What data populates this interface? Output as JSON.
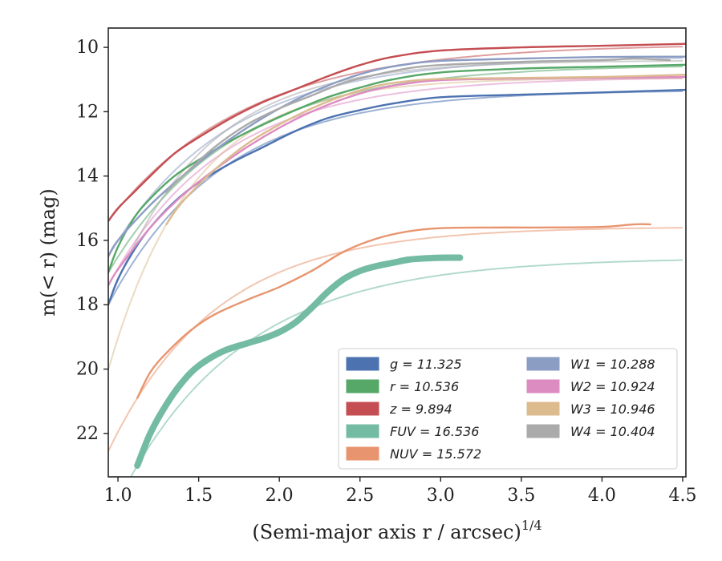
{
  "chart_data": {
    "type": "line",
    "title": "",
    "xlabel": "(Semi-major axis r / arcsec)",
    "xlabel_exponent": "1/4",
    "ylabel": "m(< r) (mag)",
    "xlim": [
      0.94,
      4.52
    ],
    "ylim": [
      23.35,
      9.4
    ],
    "y_inverted": true,
    "xticks": [
      "1.0",
      "1.5",
      "2.0",
      "2.5",
      "3.0",
      "3.5",
      "4.0",
      "4.5"
    ],
    "xtick_values": [
      1.0,
      1.5,
      2.0,
      2.5,
      3.0,
      3.5,
      4.0,
      4.5
    ],
    "yticks": [
      "10",
      "12",
      "14",
      "16",
      "18",
      "20",
      "22"
    ],
    "ytick_values": [
      10,
      12,
      14,
      16,
      18,
      20,
      22
    ],
    "grid": false,
    "legend_position": "bottom-right",
    "colors": {
      "g": "#4c72b0",
      "r": "#55a868",
      "z": "#c44e52",
      "FUV": "#73bba3",
      "NUV": "#e8956f",
      "W1": "#8c9dc4",
      "W2": "#dd8cc2",
      "W3": "#dcbb8f",
      "W4": "#aaaaaa"
    },
    "series": [
      {
        "key": "g",
        "legend": "g = 11.325",
        "asymptote": 11.325,
        "x": [
          0.94,
          1.0,
          1.1,
          1.2,
          1.35,
          1.5,
          1.7,
          1.9,
          2.1,
          2.3,
          2.5,
          2.7,
          3.0,
          3.5,
          4.0,
          4.52
        ],
        "y": [
          18.0,
          17.2,
          16.3,
          15.6,
          14.8,
          14.2,
          13.6,
          13.1,
          12.6,
          12.2,
          11.95,
          11.75,
          11.55,
          11.47,
          11.4,
          11.32
        ]
      },
      {
        "key": "r",
        "legend": "r = 10.536",
        "asymptote": 10.536,
        "x": [
          0.94,
          1.0,
          1.1,
          1.2,
          1.35,
          1.5,
          1.7,
          1.9,
          2.1,
          2.3,
          2.5,
          2.7,
          3.0,
          3.5,
          4.0,
          4.52
        ],
        "y": [
          17.0,
          16.2,
          15.3,
          14.7,
          14.0,
          13.5,
          12.9,
          12.4,
          11.95,
          11.55,
          11.25,
          11.0,
          10.78,
          10.66,
          10.6,
          10.54
        ]
      },
      {
        "key": "z",
        "legend": "z = 9.894",
        "asymptote": 9.894,
        "x": [
          0.94,
          1.0,
          1.1,
          1.2,
          1.35,
          1.5,
          1.7,
          1.9,
          2.1,
          2.3,
          2.5,
          2.7,
          3.0,
          3.5,
          4.0,
          4.52
        ],
        "y": [
          15.4,
          15.0,
          14.5,
          14.0,
          13.3,
          12.8,
          12.2,
          11.7,
          11.3,
          10.9,
          10.55,
          10.3,
          10.1,
          10.0,
          9.95,
          9.89
        ]
      },
      {
        "key": "FUV",
        "legend": "FUV = 16.536",
        "asymptote": 16.536,
        "x": [
          1.12,
          1.2,
          1.3,
          1.4,
          1.5,
          1.65,
          1.8,
          1.9,
          2.0,
          2.1,
          2.2,
          2.3,
          2.4,
          2.5,
          2.6,
          2.7,
          2.8,
          2.9,
          3.0,
          3.12
        ],
        "y": [
          23.0,
          22.0,
          21.1,
          20.4,
          19.9,
          19.45,
          19.2,
          19.05,
          18.85,
          18.55,
          18.1,
          17.6,
          17.2,
          16.95,
          16.8,
          16.7,
          16.6,
          16.56,
          16.54,
          16.536
        ]
      },
      {
        "key": "NUV",
        "legend": "NUV = 15.572",
        "asymptote": 15.572,
        "x": [
          1.12,
          1.2,
          1.3,
          1.45,
          1.6,
          1.8,
          2.0,
          2.2,
          2.4,
          2.6,
          2.8,
          3.0,
          3.3,
          3.6,
          4.0,
          4.2,
          4.3
        ],
        "y": [
          20.9,
          20.1,
          19.5,
          18.8,
          18.3,
          17.85,
          17.45,
          16.95,
          16.35,
          15.95,
          15.72,
          15.62,
          15.6,
          15.6,
          15.58,
          15.5,
          15.5
        ]
      },
      {
        "key": "W1",
        "legend": "W1 = 10.288",
        "asymptote": 10.288,
        "x": [
          0.94,
          1.0,
          1.2,
          1.4,
          1.6,
          1.8,
          2.0,
          2.2,
          2.4,
          2.6,
          2.8,
          3.0,
          3.5,
          4.0,
          4.52
        ],
        "y": [
          16.5,
          16.0,
          14.9,
          14.0,
          13.2,
          12.5,
          11.9,
          11.4,
          11.0,
          10.7,
          10.52,
          10.42,
          10.35,
          10.3,
          10.29
        ]
      },
      {
        "key": "W2",
        "legend": "W2 = 10.924",
        "asymptote": 10.924,
        "x": [
          0.94,
          1.0,
          1.2,
          1.4,
          1.6,
          1.8,
          2.0,
          2.2,
          2.4,
          2.6,
          2.8,
          3.0,
          3.5,
          4.0,
          4.52
        ],
        "y": [
          17.4,
          16.9,
          15.6,
          14.6,
          13.8,
          13.1,
          12.5,
          12.0,
          11.6,
          11.3,
          11.12,
          11.02,
          10.97,
          10.95,
          10.92
        ]
      },
      {
        "key": "W3",
        "legend": "W3 = 10.946",
        "asymptote": 10.946,
        "x": [
          1.3,
          1.4,
          1.6,
          1.8,
          2.0,
          2.2,
          2.4,
          2.6,
          2.8,
          3.0,
          3.5,
          4.0,
          4.52
        ],
        "y": [
          15.5,
          14.8,
          13.8,
          13.0,
          12.4,
          11.9,
          11.5,
          11.2,
          11.05,
          10.98,
          10.95,
          10.92,
          10.85
        ]
      },
      {
        "key": "W4",
        "legend": "W4 = 10.404",
        "asymptote": 10.404,
        "x": [
          1.3,
          1.4,
          1.6,
          1.8,
          2.0,
          2.2,
          2.4,
          2.6,
          2.8,
          3.0,
          3.5,
          4.0,
          4.2,
          4.42
        ],
        "y": [
          14.5,
          14.0,
          13.1,
          12.4,
          11.9,
          11.5,
          11.1,
          10.85,
          10.65,
          10.55,
          10.45,
          10.4,
          10.35,
          10.4
        ]
      }
    ]
  }
}
